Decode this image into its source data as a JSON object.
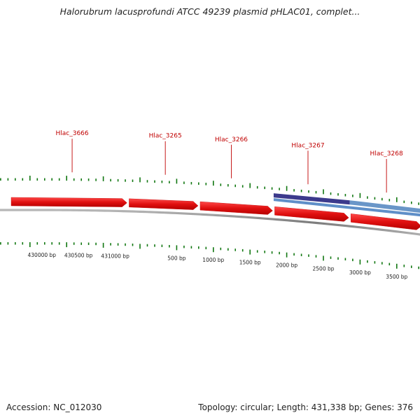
{
  "header": {
    "title": "Halorubrum lacusprofundi ATCC 49239 plasmid pHLAC01, complet..."
  },
  "footer": {
    "accession": "Accession: NC_012030",
    "summary": "Topology: circular; Length: 431,338 bp; Genes: 376"
  },
  "gene_labels": [
    {
      "label": "Hlac_3666",
      "bp": -925
    },
    {
      "label": "Hlac_3265",
      "bp": 345
    },
    {
      "label": "Hlac_3266",
      "bp": 1245
    },
    {
      "label": "Hlac_3267",
      "bp": 2290
    },
    {
      "label": "Hlac_3268",
      "bp": 3360
    }
  ],
  "scale_labels": [
    {
      "label": "430000 bp",
      "bp": -1338
    },
    {
      "label": "430500 bp",
      "bp": -838
    },
    {
      "label": "431000 bp",
      "bp": -338
    },
    {
      "label": "500 bp",
      "bp": 500
    },
    {
      "label": "1000 bp",
      "bp": 1000
    },
    {
      "label": "1500 bp",
      "bp": 1500
    },
    {
      "label": "2000 bp",
      "bp": 2000
    },
    {
      "label": "2500 bp",
      "bp": 2500
    },
    {
      "label": "3000 bp",
      "bp": 3000
    },
    {
      "label": "3500 bp",
      "bp": 3500
    }
  ],
  "genes": [
    {
      "start": -1840,
      "end": -163
    },
    {
      "start": -163,
      "end": 806
    },
    {
      "start": 806,
      "end": 1822
    },
    {
      "start": 1822,
      "end": 2860
    },
    {
      "start": 2860,
      "end": 3850
    }
  ],
  "features": [
    {
      "start": 1822,
      "end": 2860,
      "color": "#3c3a8c",
      "row": 0
    },
    {
      "start": 2860,
      "end": 3850,
      "color": "#6a96c8",
      "row": 0
    },
    {
      "start": 1822,
      "end": 3850,
      "color": "#5f8fc8",
      "row": 1
    }
  ],
  "colors": {
    "gene": "#e01010",
    "tick": "#117711",
    "backbone": "#888888"
  }
}
